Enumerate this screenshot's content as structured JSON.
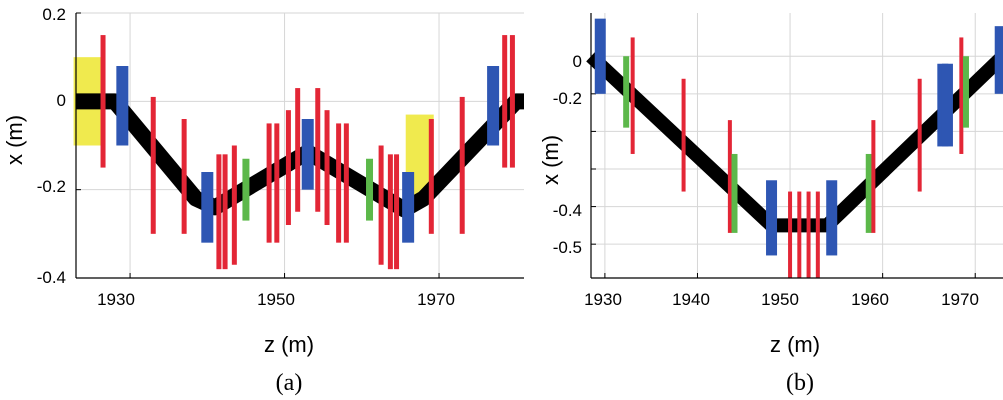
{
  "colors": {
    "dipole": "#2e56b3",
    "quad": "#e32636",
    "sext": "#5cb84a",
    "yellow": "#f0ea4e",
    "orbit": "#000000",
    "grid": "#d6d6d6"
  },
  "chart_data": [
    {
      "type": "line",
      "panel_label": "(a)",
      "xlabel": "z (m)",
      "ylabel": "x (m)",
      "xlim": [
        1923,
        1981
      ],
      "ylim": [
        -0.4,
        0.2
      ],
      "grid": true,
      "xticks": [
        1930,
        1950,
        1970
      ],
      "xtick_labels": [
        "1930",
        "1950",
        "1970"
      ],
      "yticks": [
        0.2,
        0,
        -0.2,
        -0.4
      ],
      "ytick_labels": [
        "0.2",
        "0",
        "-0.2",
        "-0.4"
      ],
      "orbit": {
        "z": [
          1923,
          1928,
          1938.5,
          1941,
          1953,
          1965.5,
          1968,
          1980,
          1981
        ],
        "x": [
          0,
          0,
          -0.22,
          -0.24,
          -0.115,
          -0.245,
          -0.22,
          0,
          0
        ]
      },
      "elements": [
        {
          "kind": "yellow",
          "z": 1924.5,
          "x1": 0.1,
          "x2": -0.1
        },
        {
          "kind": "yellow",
          "z": 1967.5,
          "x1": -0.03,
          "x2": -0.22
        },
        {
          "kind": "quad",
          "z": 1926.5,
          "x1": 0.15,
          "x2": -0.15
        },
        {
          "kind": "dipole",
          "z": 1929,
          "x1": 0.08,
          "x2": -0.1
        },
        {
          "kind": "quad",
          "z": 1933,
          "x1": 0.01,
          "x2": -0.3
        },
        {
          "kind": "quad",
          "z": 1937,
          "x1": -0.04,
          "x2": -0.3
        },
        {
          "kind": "dipole",
          "z": 1940,
          "x1": -0.16,
          "x2": -0.32
        },
        {
          "kind": "quad",
          "z": 1941.5,
          "x1": -0.12,
          "x2": -0.38
        },
        {
          "kind": "quad",
          "z": 1942.3,
          "x1": -0.12,
          "x2": -0.38
        },
        {
          "kind": "quad",
          "z": 1943.5,
          "x1": -0.1,
          "x2": -0.37
        },
        {
          "kind": "sext",
          "z": 1945,
          "x1": -0.13,
          "x2": -0.27
        },
        {
          "kind": "quad",
          "z": 1948,
          "x1": -0.05,
          "x2": -0.32
        },
        {
          "kind": "quad",
          "z": 1949,
          "x1": -0.05,
          "x2": -0.32
        },
        {
          "kind": "quad",
          "z": 1950.5,
          "x1": -0.02,
          "x2": -0.28
        },
        {
          "kind": "quad",
          "z": 1951.7,
          "x1": 0.03,
          "x2": -0.25
        },
        {
          "kind": "dipole",
          "z": 1953,
          "x1": -0.04,
          "x2": -0.2
        },
        {
          "kind": "quad",
          "z": 1954.3,
          "x1": 0.03,
          "x2": -0.25
        },
        {
          "kind": "quad",
          "z": 1955.5,
          "x1": -0.02,
          "x2": -0.28
        },
        {
          "kind": "quad",
          "z": 1957,
          "x1": -0.05,
          "x2": -0.32
        },
        {
          "kind": "quad",
          "z": 1958,
          "x1": -0.05,
          "x2": -0.32
        },
        {
          "kind": "sext",
          "z": 1961,
          "x1": -0.13,
          "x2": -0.27
        },
        {
          "kind": "quad",
          "z": 1962.5,
          "x1": -0.1,
          "x2": -0.37
        },
        {
          "kind": "quad",
          "z": 1963.7,
          "x1": -0.12,
          "x2": -0.38
        },
        {
          "kind": "quad",
          "z": 1964.5,
          "x1": -0.12,
          "x2": -0.38
        },
        {
          "kind": "dipole",
          "z": 1966,
          "x1": -0.16,
          "x2": -0.32
        },
        {
          "kind": "quad",
          "z": 1969,
          "x1": -0.04,
          "x2": -0.3
        },
        {
          "kind": "quad",
          "z": 1973,
          "x1": 0.01,
          "x2": -0.3
        },
        {
          "kind": "dipole",
          "z": 1977,
          "x1": 0.08,
          "x2": -0.1
        },
        {
          "kind": "quad",
          "z": 1978.5,
          "x1": 0.15,
          "x2": -0.15
        },
        {
          "kind": "quad",
          "z": 1979.5,
          "x1": 0.15,
          "x2": -0.15
        }
      ]
    },
    {
      "type": "line",
      "panel_label": "(b)",
      "xlabel": "z (m)",
      "ylabel": "x (m)",
      "xlim": [
        1928.5,
        1973
      ],
      "ylim": [
        -0.59,
        0.115
      ],
      "grid": true,
      "xticks": [
        1930,
        1940,
        1950,
        1960,
        1970
      ],
      "xtick_labels": [
        "1930",
        "1940",
        "1950",
        "1960",
        "1970"
      ],
      "yticks": [
        0,
        -0.2,
        -0.4,
        -0.5
      ],
      "ytick_labels": [
        "0",
        "-0.2",
        "-0.4",
        "-0.5"
      ],
      "grid_y": [
        0,
        -0.1,
        -0.2,
        -0.3,
        -0.4,
        -0.5
      ],
      "orbit": {
        "z": [
          1928.5,
          1948,
          1954,
          1973
        ],
        "x": [
          0,
          -0.45,
          -0.45,
          0
        ]
      },
      "elements": [
        {
          "kind": "dipole",
          "z": 1929.5,
          "x1": 0.1,
          "x2": -0.1
        },
        {
          "kind": "sext",
          "z": 1932.3,
          "x1": 0.0,
          "x2": -0.19
        },
        {
          "kind": "quad",
          "z": 1933,
          "x1": 0.05,
          "x2": -0.26
        },
        {
          "kind": "quad",
          "z": 1938.5,
          "x1": -0.06,
          "x2": -0.36
        },
        {
          "kind": "quad",
          "z": 1943.5,
          "x1": -0.17,
          "x2": -0.47
        },
        {
          "kind": "sext",
          "z": 1944,
          "x1": -0.26,
          "x2": -0.47
        },
        {
          "kind": "dipole",
          "z": 1948,
          "x1": -0.33,
          "x2": -0.53
        },
        {
          "kind": "quad",
          "z": 1950,
          "x1": -0.36,
          "x2": -0.59
        },
        {
          "kind": "quad",
          "z": 1951,
          "x1": -0.36,
          "x2": -0.59
        },
        {
          "kind": "quad",
          "z": 1952,
          "x1": -0.36,
          "x2": -0.59
        },
        {
          "kind": "quad",
          "z": 1953,
          "x1": -0.36,
          "x2": -0.59
        },
        {
          "kind": "dipole",
          "z": 1954.5,
          "x1": -0.33,
          "x2": -0.53
        },
        {
          "kind": "sext",
          "z": 1958.5,
          "x1": -0.26,
          "x2": -0.47
        },
        {
          "kind": "quad",
          "z": 1959,
          "x1": -0.17,
          "x2": -0.47
        },
        {
          "kind": "quad",
          "z": 1964,
          "x1": -0.06,
          "x2": -0.36
        },
        {
          "kind": "dipole",
          "z": 1966.5,
          "x1": -0.02,
          "x2": -0.24
        },
        {
          "kind": "dipole",
          "z": 1967,
          "x1": -0.02,
          "x2": -0.24
        },
        {
          "kind": "quad",
          "z": 1968.5,
          "x1": 0.05,
          "x2": -0.26
        },
        {
          "kind": "sext",
          "z": 1969,
          "x1": 0.0,
          "x2": -0.19
        },
        {
          "kind": "dipole",
          "z": 1972.7,
          "x1": 0.08,
          "x2": -0.1
        }
      ]
    }
  ]
}
